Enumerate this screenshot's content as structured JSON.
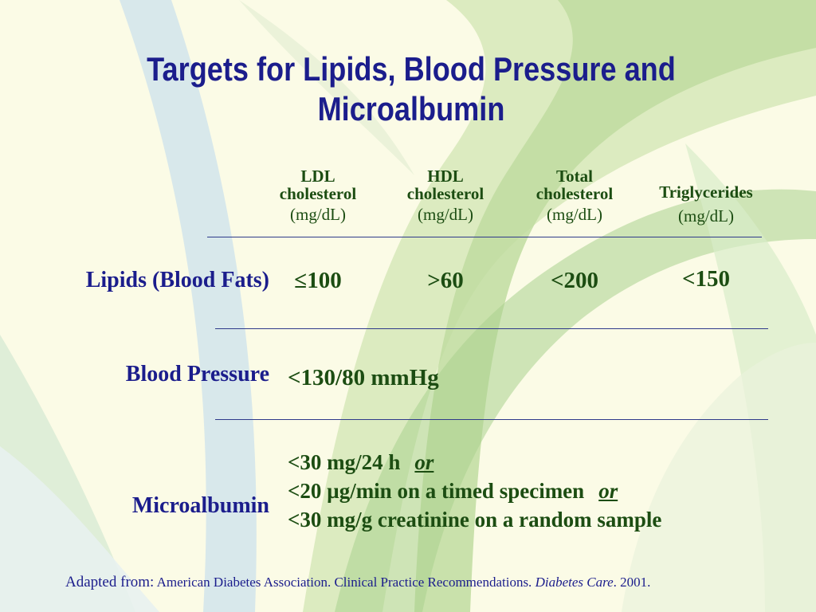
{
  "title": {
    "line1": "Targets for Lipids, Blood Pressure and",
    "line2": "Microalbumin"
  },
  "columns": [
    {
      "name1": "LDL",
      "name2": "cholesterol",
      "unit": "(mg/dL)"
    },
    {
      "name1": "HDL",
      "name2": "cholesterol",
      "unit": "(mg/dL)"
    },
    {
      "name1": "Total",
      "name2": "cholesterol",
      "unit": "(mg/dL)"
    },
    {
      "name1": "Triglycerides",
      "name2": "",
      "unit": "(mg/dL)"
    }
  ],
  "rows": {
    "lipids": {
      "label": "Lipids (Blood Fats)",
      "values": [
        "≤100",
        ">60",
        "<200",
        "<150"
      ]
    },
    "blood_pressure": {
      "label": "Blood Pressure",
      "value": "<130/80 mmHg"
    },
    "microalbumin": {
      "label": "Microalbumin",
      "line1": "<30 mg/24 h",
      "line2": "<20 µg/min on a timed specimen",
      "line3": "<30 mg/g creatinine on a random sample",
      "or_word": "or"
    }
  },
  "footer": {
    "lead": "Adapted from:",
    "source": "American Diabetes Association. Clinical Practice Recommendations.",
    "journal": "Diabetes Care",
    "year": ". 2001."
  },
  "colors": {
    "title": "#1b1d8c",
    "values": "#1c4d12",
    "background": "#fbfbe6"
  }
}
